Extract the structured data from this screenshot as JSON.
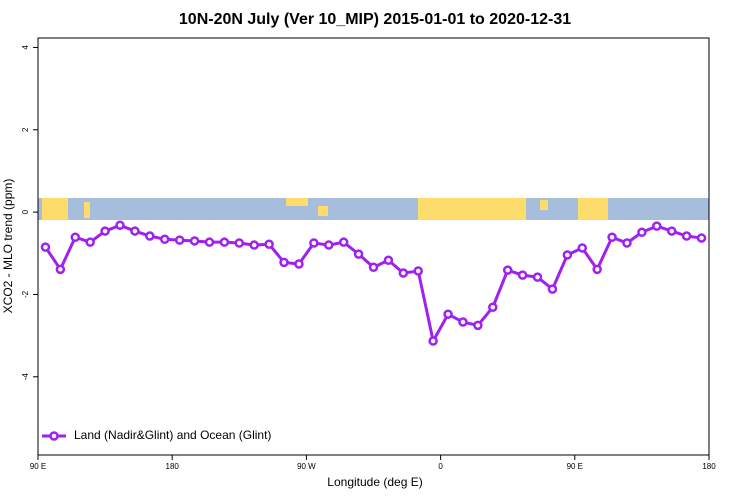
{
  "chart_data": {
    "type": "line",
    "title": "10N-20N July (Ver 10_MIP)   2015-01-01 to 2020-12-31",
    "x_label": "Longitude (deg E)",
    "y_label": "XCO2 - MLO trend (ppm)",
    "xlim": [
      90,
      540
    ],
    "ylim": [
      -5.9,
      4.23
    ],
    "xticks": [
      {
        "value": 90,
        "label": "90 E"
      },
      180,
      {
        "value": 270,
        "label": "90 W"
      },
      {
        "value": 360,
        "label": "0"
      },
      {
        "value": 450,
        "label": "90 E"
      },
      {
        "value": 540,
        "label": "180"
      }
    ],
    "yticks": [
      -4,
      -2,
      0,
      2,
      4
    ],
    "legend": "bottom-left",
    "x": [
      95,
      105,
      115,
      125,
      135,
      145,
      155,
      165,
      175,
      185,
      195,
      205,
      215,
      225,
      235,
      245,
      255,
      265,
      275,
      285,
      295,
      305,
      315,
      325,
      335,
      345,
      355,
      365,
      375,
      385,
      395,
      405,
      415,
      425,
      435,
      445,
      455,
      465,
      475,
      485,
      495,
      505,
      515,
      525,
      535
    ],
    "series": [
      {
        "name": "Land (Nadir&Glint) and Ocean (Glint)",
        "color": "#a020f0",
        "values": [
          -0.85,
          -1.39,
          -0.61,
          -0.73,
          -0.46,
          -0.32,
          -0.46,
          -0.58,
          -0.66,
          -0.68,
          -0.7,
          -0.73,
          -0.73,
          -0.75,
          -0.8,
          -0.78,
          -1.22,
          -1.26,
          -0.75,
          -0.8,
          -0.73,
          -1.02,
          -1.34,
          -1.17,
          -1.48,
          -1.43,
          -3.13,
          -2.48,
          -2.67,
          -2.75,
          -2.31,
          -1.41,
          -1.53,
          -1.58,
          -1.87,
          -1.04,
          -0.87,
          -1.39,
          -0.61,
          -0.75,
          -0.49,
          -0.34,
          -0.46,
          -0.58,
          -0.63
        ]
      }
    ]
  }
}
